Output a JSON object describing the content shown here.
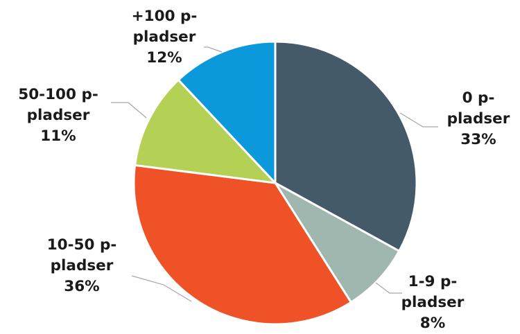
{
  "chart_data": {
    "type": "pie",
    "start_angle_deg": 0,
    "direction": "clockwise",
    "slices": [
      {
        "name": "0 p-pladser",
        "value": 33,
        "label_lines": [
          "0 p-",
          "pladser",
          "33%"
        ],
        "color": "#445a69"
      },
      {
        "name": "1-9 p-pladser",
        "value": 8,
        "label_lines": [
          "1-9 p-",
          "pladser",
          "8%"
        ],
        "color": "#9fb7af"
      },
      {
        "name": "10-50 p-pladser",
        "value": 36,
        "label_lines": [
          "10-50 p-",
          "pladser",
          "36%"
        ],
        "color": "#ef5226"
      },
      {
        "name": "50-100 p-pladser",
        "value": 11,
        "label_lines": [
          "50-100 p-",
          "pladser",
          "11%"
        ],
        "color": "#b4d055"
      },
      {
        "name": "+100 p-pladser",
        "value": 12,
        "label_lines": [
          "+100 p-",
          "pladser",
          "12%"
        ],
        "color": "#0b99dc"
      }
    ],
    "legend": "none"
  }
}
